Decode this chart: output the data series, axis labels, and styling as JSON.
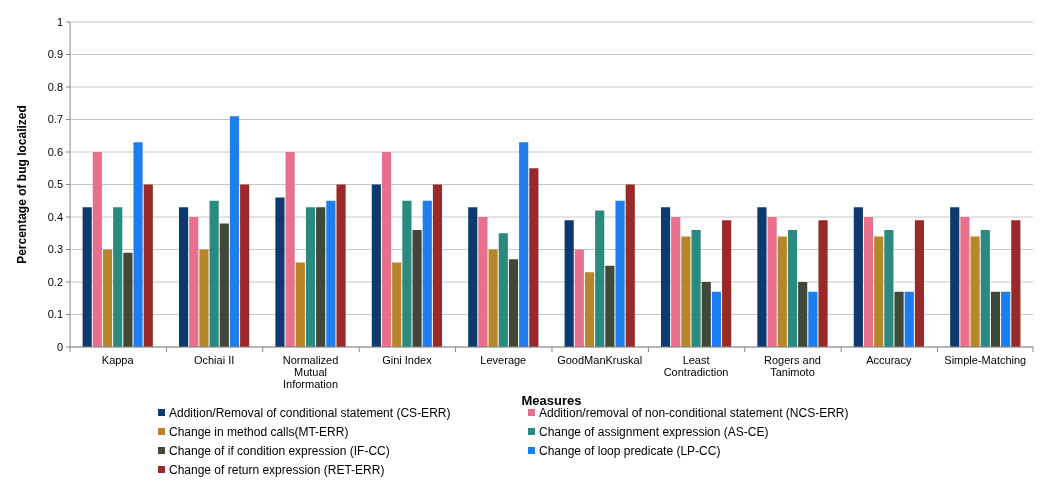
{
  "chart_data": {
    "type": "bar",
    "xlabel": "Measures",
    "ylabel": "Percentage of bug localized",
    "categories": [
      "Kappa",
      "Ochiai II",
      "Normalized Mutual Information",
      "Gini Index",
      "Leverage",
      "GoodManKruskal",
      "Least Contradiction",
      "Rogers and Tanimoto",
      "Accuracy",
      "Simple-Matching"
    ],
    "series": [
      {
        "name": "Addition/Removal of conditional statement (CS-ERR)",
        "color": "#0d3a6e",
        "values": [
          0.43,
          0.43,
          0.46,
          0.5,
          0.43,
          0.39,
          0.43,
          0.43,
          0.43,
          0.43
        ]
      },
      {
        "name": "Addition/removal of non-conditional statement (NCS-ERR)",
        "color": "#e8708a",
        "values": [
          0.6,
          0.4,
          0.6,
          0.6,
          0.4,
          0.3,
          0.4,
          0.4,
          0.4,
          0.4
        ]
      },
      {
        "name": "Change in method calls(MT-ERR)",
        "color": "#b8862a",
        "values": [
          0.3,
          0.3,
          0.26,
          0.26,
          0.3,
          0.23,
          0.34,
          0.34,
          0.34,
          0.34
        ]
      },
      {
        "name": "Change of assignment expression (AS-CE)",
        "color": "#2a8a80",
        "values": [
          0.43,
          0.45,
          0.43,
          0.45,
          0.35,
          0.42,
          0.36,
          0.36,
          0.36,
          0.36
        ]
      },
      {
        "name": "Change of if condition expression (IF-CC)",
        "color": "#404838",
        "values": [
          0.29,
          0.38,
          0.43,
          0.36,
          0.27,
          0.25,
          0.2,
          0.2,
          0.17,
          0.17
        ]
      },
      {
        "name": "Change of loop predicate (LP-CC)",
        "color": "#1e7ef0",
        "values": [
          0.63,
          0.71,
          0.45,
          0.45,
          0.63,
          0.45,
          0.17,
          0.17,
          0.17,
          0.17
        ]
      },
      {
        "name": "Change of return expression (RET-ERR)",
        "color": "#9a2a2a",
        "values": [
          0.5,
          0.5,
          0.5,
          0.5,
          0.55,
          0.5,
          0.39,
          0.39,
          0.39,
          0.39
        ]
      }
    ],
    "ylim": [
      0,
      1
    ],
    "yticks": [
      0,
      0.1,
      0.2,
      0.3,
      0.4,
      0.5,
      0.6,
      0.7,
      0.8,
      0.9,
      1
    ],
    "grid": "y",
    "legend": "bottom"
  }
}
